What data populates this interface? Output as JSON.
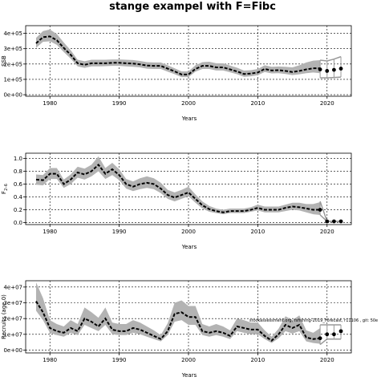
{
  "title": "stange exampel with F=Fibc",
  "chart_data": [
    {
      "type": "line",
      "xlabel": "Years",
      "ylabel": "SSB",
      "xlim": [
        1976.5,
        2023.5
      ],
      "ylim": [
        -10000,
        450000
      ],
      "xticks": [
        1980,
        1990,
        2000,
        2010,
        2020
      ],
      "yticks": [
        {
          "v": 0,
          "label": "0e+00"
        },
        {
          "v": 100000,
          "label": "1e+05"
        },
        {
          "v": 200000,
          "label": "2e+05"
        },
        {
          "v": 300000,
          "label": "3e+05"
        },
        {
          "v": 400000,
          "label": "4e+05"
        }
      ],
      "grid": true,
      "series": [
        {
          "x": [
            1978,
            1979,
            1980,
            1981,
            1982,
            1983,
            1984,
            1985,
            1986,
            1987,
            1988,
            1989,
            1990,
            1991,
            1992,
            1993,
            1994,
            1995,
            1996,
            1997,
            1998,
            1999,
            2000,
            2001,
            2002,
            2003,
            2004,
            2005,
            2006,
            2007,
            2008,
            2009,
            2010,
            2011,
            2012,
            2013,
            2014,
            2015,
            2016,
            2017,
            2018,
            2019
          ],
          "y": [
            335000,
            375000,
            380000,
            355000,
            305000,
            260000,
            205000,
            195000,
            205000,
            205000,
            205000,
            208000,
            208000,
            205000,
            203000,
            198000,
            190000,
            188000,
            188000,
            170000,
            152000,
            132000,
            132000,
            168000,
            188000,
            188000,
            178000,
            178000,
            165000,
            152000,
            135000,
            138000,
            145000,
            168000,
            158000,
            160000,
            155000,
            148000,
            155000,
            165000,
            172000,
            172000
          ],
          "lower": [
            305000,
            345000,
            348000,
            325000,
            278000,
            235000,
            185000,
            175000,
            185000,
            185000,
            186000,
            188000,
            188000,
            185000,
            182000,
            178000,
            170000,
            168000,
            168000,
            150000,
            134000,
            115000,
            115000,
            150000,
            168000,
            168000,
            158000,
            158000,
            146000,
            134000,
            117000,
            120000,
            127000,
            148000,
            139000,
            140000,
            135000,
            128000,
            133000,
            140000,
            145000,
            140000
          ],
          "upper": [
            370000,
            415000,
            425000,
            395000,
            340000,
            290000,
            228000,
            218000,
            228000,
            228000,
            228000,
            230000,
            230000,
            228000,
            226000,
            220000,
            212000,
            210000,
            210000,
            192000,
            172000,
            152000,
            152000,
            192000,
            212000,
            215000,
            205000,
            205000,
            190000,
            176000,
            157000,
            160000,
            168000,
            192000,
            182000,
            184000,
            182000,
            178000,
            192000,
            210000,
            222000,
            225000
          ]
        }
      ],
      "forecast": [
        {
          "x": 2019,
          "y": 165000,
          "lower": 110000,
          "upper": 225000
        },
        {
          "x": 2020,
          "y": 155000,
          "lower": 110000,
          "upper": 220000
        },
        {
          "x": 2021,
          "y": 162000,
          "lower": 112000,
          "upper": 232000
        },
        {
          "x": 2022,
          "y": 170000,
          "lower": 115000,
          "upper": 248000
        }
      ]
    },
    {
      "type": "line",
      "xlabel": "Years",
      "ylabel": "F2-6",
      "ylabel_main": "F",
      "ylabel_sub": "2–6",
      "xlim": [
        1976.5,
        2023.5
      ],
      "ylim": [
        -0.03,
        1.08
      ],
      "xticks": [
        1980,
        1990,
        2000,
        2010,
        2020
      ],
      "yticks": [
        {
          "v": 0.0,
          "label": "0.0"
        },
        {
          "v": 0.2,
          "label": "0.2"
        },
        {
          "v": 0.4,
          "label": "0.4"
        },
        {
          "v": 0.6,
          "label": "0.6"
        },
        {
          "v": 0.8,
          "label": "0.8"
        },
        {
          "v": 1.0,
          "label": "1.0"
        }
      ],
      "grid": true,
      "series": [
        {
          "x": [
            1978,
            1979,
            1980,
            1981,
            1982,
            1983,
            1984,
            1985,
            1986,
            1987,
            1988,
            1989,
            1990,
            1991,
            1992,
            1993,
            1994,
            1995,
            1996,
            1997,
            1998,
            1999,
            2000,
            2001,
            2002,
            2003,
            2004,
            2005,
            2006,
            2007,
            2008,
            2009,
            2010,
            2011,
            2012,
            2013,
            2014,
            2015,
            2016,
            2017,
            2018,
            2019
          ],
          "y": [
            0.67,
            0.66,
            0.76,
            0.76,
            0.6,
            0.67,
            0.78,
            0.75,
            0.8,
            0.9,
            0.76,
            0.83,
            0.74,
            0.6,
            0.56,
            0.6,
            0.62,
            0.6,
            0.53,
            0.43,
            0.39,
            0.43,
            0.47,
            0.37,
            0.27,
            0.21,
            0.18,
            0.16,
            0.18,
            0.18,
            0.18,
            0.2,
            0.23,
            0.2,
            0.2,
            0.2,
            0.23,
            0.25,
            0.24,
            0.22,
            0.2,
            0.2
          ],
          "lower": [
            0.59,
            0.58,
            0.68,
            0.68,
            0.54,
            0.6,
            0.7,
            0.67,
            0.72,
            0.8,
            0.68,
            0.74,
            0.66,
            0.53,
            0.49,
            0.52,
            0.54,
            0.52,
            0.46,
            0.37,
            0.33,
            0.37,
            0.41,
            0.31,
            0.22,
            0.17,
            0.15,
            0.13,
            0.15,
            0.15,
            0.15,
            0.17,
            0.19,
            0.16,
            0.16,
            0.16,
            0.18,
            0.2,
            0.19,
            0.16,
            0.13,
            0.12
          ],
          "upper": [
            0.75,
            0.74,
            0.85,
            0.85,
            0.67,
            0.75,
            0.87,
            0.84,
            0.9,
            1.03,
            0.85,
            0.93,
            0.83,
            0.68,
            0.64,
            0.69,
            0.72,
            0.69,
            0.62,
            0.51,
            0.47,
            0.51,
            0.56,
            0.44,
            0.33,
            0.26,
            0.22,
            0.2,
            0.22,
            0.22,
            0.22,
            0.24,
            0.28,
            0.25,
            0.25,
            0.25,
            0.28,
            0.31,
            0.31,
            0.29,
            0.29,
            0.32
          ]
        }
      ],
      "forecast": [
        {
          "x": 2019,
          "y": 0.2,
          "lower": 0.12,
          "upper": 0.33
        },
        {
          "x": 2020,
          "y": 0.02,
          "lower": 0.02,
          "upper": 0.02
        },
        {
          "x": 2021,
          "y": 0.02,
          "lower": 0.02,
          "upper": 0.02
        },
        {
          "x": 2022,
          "y": 0.02,
          "lower": 0.02,
          "upper": 0.02
        }
      ]
    },
    {
      "type": "line",
      "xlabel": "Years",
      "ylabel": "Recruits (age 0)",
      "xlim": [
        1976.5,
        2023.5
      ],
      "ylim": [
        -1800000,
        44000000
      ],
      "xticks": [
        1980,
        1990,
        2000,
        2010,
        2020
      ],
      "yticks": [
        {
          "v": 0,
          "label": "0e+00"
        },
        {
          "v": 10000000,
          "label": "1e+07"
        },
        {
          "v": 20000000,
          "label": "2e+07"
        },
        {
          "v": 30000000,
          "label": "3e+07"
        },
        {
          "v": 40000000,
          "label": "4e+07"
        }
      ],
      "grid": true,
      "annotation": "stockassessment.org, fsfishing-2019_Forecast, r11106 , git: 50e",
      "series": [
        {
          "x": [
            1978,
            1979,
            1980,
            1981,
            1982,
            1983,
            1984,
            1985,
            1986,
            1987,
            1988,
            1989,
            1990,
            1991,
            1992,
            1993,
            1994,
            1995,
            1996,
            1997,
            1998,
            1999,
            2000,
            2001,
            2002,
            2003,
            2004,
            2005,
            2006,
            2007,
            2008,
            2009,
            2010,
            2011,
            2012,
            2013,
            2014,
            2015,
            2016,
            2017,
            2018,
            2019
          ],
          "y": [
            31000000,
            24000000,
            14000000,
            12000000,
            11000000,
            14000000,
            12000000,
            20000000,
            18000000,
            15000000,
            20000000,
            13000000,
            12000000,
            12000000,
            14000000,
            13000000,
            11000000,
            9000000,
            7000000,
            12000000,
            23000000,
            24000000,
            21000000,
            21000000,
            12000000,
            11000000,
            12000000,
            11000000,
            9000000,
            15000000,
            14000000,
            13000000,
            13000000,
            9000000,
            6000000,
            10000000,
            16000000,
            14000000,
            16000000,
            8000000,
            7000000,
            7500000
          ],
          "lower": [
            25000000,
            19000000,
            11000000,
            9500000,
            8500000,
            11000000,
            9500000,
            16000000,
            14000000,
            12000000,
            16000000,
            10000000,
            9500000,
            9500000,
            11000000,
            10000000,
            8500000,
            7000000,
            5500000,
            9500000,
            18000000,
            19000000,
            16000000,
            16000000,
            9500000,
            8500000,
            9500000,
            8500000,
            7000000,
            12000000,
            11000000,
            10000000,
            10000000,
            7000000,
            4500000,
            7500000,
            12000000,
            10500000,
            12000000,
            5500000,
            4500000,
            4000000
          ],
          "upper": [
            43000000,
            33000000,
            19000000,
            16500000,
            15000000,
            19000000,
            16500000,
            27000000,
            24000000,
            20500000,
            27000000,
            17500000,
            16500000,
            16500000,
            19000000,
            17500000,
            15000000,
            12500000,
            9500000,
            17000000,
            30000000,
            31500000,
            28000000,
            28000000,
            16500000,
            15000000,
            16500000,
            15000000,
            12500000,
            20000000,
            19000000,
            17500000,
            17500000,
            12500000,
            8500000,
            13500000,
            21500000,
            19000000,
            22000000,
            12500000,
            11000000,
            14000000
          ]
        }
      ],
      "forecast": [
        {
          "x": 2019,
          "y": 7500000,
          "lower": 3500000,
          "upper": 16000000
        },
        {
          "x": 2020,
          "y": 10000000,
          "lower": 7000000,
          "upper": 16000000
        },
        {
          "x": 2021,
          "y": 10000000,
          "lower": 7000000,
          "upper": 16000000
        },
        {
          "x": 2022,
          "y": 12000000,
          "lower": 7000000,
          "upper": 16000000
        }
      ]
    }
  ]
}
